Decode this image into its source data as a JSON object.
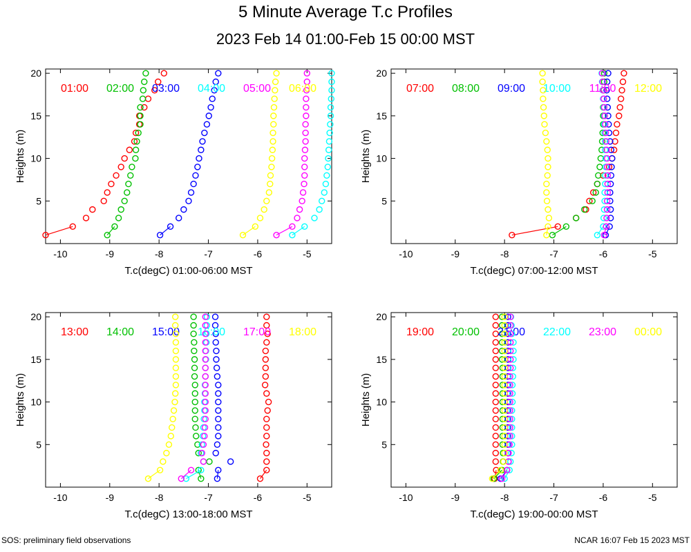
{
  "title": "5 Minute Average T.c Profiles",
  "subtitle": "2023 Feb 14 01:00-Feb 15 00:00 MST",
  "footer_left": "SOS: preliminary field observations",
  "footer_right": "NCAR 16:07 Feb 15 2023 MST",
  "colors": {
    "red": "#ff0000",
    "green": "#00c000",
    "blue": "#0000ff",
    "cyan": "#00ffff",
    "magenta": "#ff00ff",
    "yellow": "#ffff00"
  },
  "chart_data": [
    {
      "type": "scatter",
      "xlabel": "T.c(degC) 01:00-06:00 MST",
      "ylabel": "Heights (m)",
      "xlim": [
        -10.3,
        -4.5
      ],
      "ylim": [
        0,
        20.5
      ],
      "xticks": [
        -10,
        -9,
        -8,
        -7,
        -6,
        -5
      ],
      "yticks": [
        5,
        10,
        15,
        20
      ],
      "heights": [
        1,
        2,
        3,
        4,
        5,
        6,
        7,
        8,
        9,
        10,
        11,
        12,
        13,
        14,
        15,
        16,
        17,
        18,
        19,
        20
      ],
      "series": [
        {
          "name": "01:00",
          "color": "red",
          "x": [
            -10.3,
            -9.75,
            -9.48,
            -9.35,
            -9.12,
            -9.05,
            -8.97,
            -8.87,
            -8.77,
            -8.7,
            -8.6,
            -8.5,
            -8.47,
            -8.4,
            -8.4,
            -8.3,
            -8.22,
            -8.09,
            -8.02,
            -7.9
          ]
        },
        {
          "name": "02:00",
          "color": "green",
          "x": [
            -9.05,
            -8.9,
            -8.82,
            -8.77,
            -8.7,
            -8.65,
            -8.62,
            -8.58,
            -8.55,
            -8.48,
            -8.47,
            -8.45,
            -8.42,
            -8.38,
            -8.38,
            -8.38,
            -8.33,
            -8.32,
            -8.3,
            -8.27
          ]
        },
        {
          "name": "03:00",
          "color": "blue",
          "x": [
            -7.98,
            -7.77,
            -7.6,
            -7.5,
            -7.4,
            -7.35,
            -7.3,
            -7.26,
            -7.22,
            -7.19,
            -7.15,
            -7.12,
            -7.08,
            -7.03,
            -6.99,
            -6.95,
            -6.92,
            -6.88,
            -6.85,
            -6.8
          ]
        },
        {
          "name": "04:00",
          "color": "cyan",
          "x": [
            -5.3,
            -5.05,
            -4.85,
            -4.75,
            -4.7,
            -4.65,
            -4.62,
            -4.6,
            -4.58,
            -4.57,
            -4.56,
            -4.55,
            -4.54,
            -4.53,
            -4.52,
            -4.52,
            -4.51,
            -4.5,
            -4.5,
            -4.5
          ]
        },
        {
          "name": "05:00",
          "color": "magenta",
          "x": [
            -5.62,
            -5.3,
            -5.2,
            -5.15,
            -5.1,
            -5.08,
            -5.06,
            -5.05,
            -5.05,
            -5.05,
            -5.04,
            -5.03,
            -5.03,
            -5.03,
            -5.02,
            -5.02,
            -5.02,
            -5.01,
            -5.0,
            -5.0
          ]
        },
        {
          "name": "06:00",
          "color": "yellow",
          "x": [
            -6.3,
            -6.05,
            -5.95,
            -5.87,
            -5.82,
            -5.77,
            -5.75,
            -5.74,
            -5.72,
            -5.71,
            -5.7,
            -5.69,
            -5.69,
            -5.68,
            -5.68,
            -5.67,
            -5.66,
            -5.65,
            -5.64,
            -5.62
          ]
        }
      ]
    },
    {
      "type": "scatter",
      "xlabel": "T.c(degC) 07:00-12:00 MST",
      "ylabel": "Heights (m)",
      "xlim": [
        -10.3,
        -4.5
      ],
      "ylim": [
        0,
        20.5
      ],
      "xticks": [
        -10,
        -9,
        -8,
        -7,
        -6,
        -5
      ],
      "yticks": [
        5,
        10,
        15,
        20
      ],
      "heights": [
        1,
        2,
        3,
        4,
        5,
        6,
        7,
        8,
        9,
        10,
        11,
        12,
        13,
        14,
        15,
        16,
        17,
        18,
        19,
        20
      ],
      "series": [
        {
          "name": "07:00",
          "color": "red",
          "x": [
            -7.85,
            -6.92,
            -6.55,
            -6.35,
            -6.28,
            -6.2,
            -6.12,
            -6.0,
            -5.88,
            -5.82,
            -5.78,
            -5.76,
            -5.74,
            -5.72,
            -5.68,
            -5.66,
            -5.64,
            -5.62,
            -5.6,
            -5.58
          ]
        },
        {
          "name": "08:00",
          "color": "green",
          "x": [
            -7.03,
            -6.75,
            -6.55,
            -6.38,
            -6.22,
            -6.15,
            -6.12,
            -6.1,
            -6.07,
            -6.05,
            -6.03,
            -6.02,
            -6.01,
            -6.0,
            -6.0,
            -6.0,
            -5.99,
            -5.99,
            -5.98,
            -5.98
          ]
        },
        {
          "name": "09:00",
          "color": "blue",
          "x": [
            -5.95,
            -5.87,
            -5.85,
            -5.85,
            -5.86,
            -5.86,
            -5.85,
            -5.84,
            -5.83,
            -5.82,
            -5.84,
            -5.86,
            -5.88,
            -5.89,
            -5.9,
            -5.91,
            -5.92,
            -5.93,
            -5.92,
            -5.9
          ]
        },
        {
          "name": "10:00",
          "color": "cyan",
          "x": [
            -6.12,
            -6.0,
            -5.99,
            -5.98,
            -5.97,
            -5.97,
            -5.96,
            -5.96,
            -5.95,
            -5.95,
            -5.96,
            -5.96,
            -5.97,
            -5.98,
            -5.98,
            -5.99,
            -6.0,
            -6.01,
            -6.02,
            -6.03
          ]
        },
        {
          "name": "11:00",
          "color": "magenta",
          "x": [
            -5.98,
            -5.94,
            -5.93,
            -5.92,
            -5.92,
            -5.91,
            -5.91,
            -5.91,
            -5.92,
            -5.92,
            -5.93,
            -5.94,
            -5.95,
            -5.96,
            -5.97,
            -5.98,
            -5.99,
            -6.0,
            -6.01,
            -6.02
          ]
        },
        {
          "name": "12:00",
          "color": "yellow",
          "x": [
            -7.15,
            -7.12,
            -7.1,
            -7.12,
            -7.14,
            -7.15,
            -7.15,
            -7.13,
            -7.12,
            -7.12,
            -7.13,
            -7.15,
            -7.17,
            -7.19,
            -7.2,
            -7.21,
            -7.22,
            -7.22,
            -7.23,
            -7.23
          ]
        }
      ]
    },
    {
      "type": "scatter",
      "xlabel": "T.c(degC) 13:00-18:00 MST",
      "ylabel": "Heights (m)",
      "xlim": [
        -10.3,
        -4.5
      ],
      "ylim": [
        0,
        20.5
      ],
      "xticks": [
        -10,
        -9,
        -8,
        -7,
        -6,
        -5
      ],
      "yticks": [
        5,
        10,
        15,
        20
      ],
      "heights": [
        1,
        2,
        3,
        4,
        5,
        6,
        7,
        8,
        9,
        10,
        11,
        12,
        13,
        14,
        15,
        16,
        17,
        18,
        19,
        20
      ],
      "series": [
        {
          "name": "13:00",
          "color": "red",
          "x": [
            -5.95,
            -5.82,
            -5.82,
            -5.82,
            -5.83,
            -5.82,
            -5.82,
            -5.82,
            -5.8,
            -5.78,
            -5.82,
            -5.85,
            -5.84,
            -5.84,
            -5.84,
            -5.84,
            -5.82,
            -5.8,
            -5.82,
            -5.82
          ]
        },
        {
          "name": "14:00",
          "color": "green",
          "x": [
            -7.15,
            -7.2,
            -6.98,
            -7.2,
            -7.22,
            -7.25,
            -7.26,
            -7.27,
            -7.27,
            -7.27,
            -7.27,
            -7.27,
            -7.28,
            -7.28,
            -7.28,
            -7.29,
            -7.29,
            -7.3,
            -7.3,
            -7.3
          ]
        },
        {
          "name": "15:00",
          "color": "blue",
          "x": [
            -6.82,
            -6.8,
            -6.55,
            -6.85,
            -6.82,
            -6.8,
            -6.8,
            -6.8,
            -6.8,
            -6.8,
            -6.8,
            -6.8,
            -6.82,
            -6.83,
            -6.84,
            -6.84,
            -6.85,
            -6.85,
            -6.86,
            -6.86
          ]
        },
        {
          "name": "16:00",
          "color": "cyan",
          "x": [
            -7.45,
            -7.15,
            -7.1,
            -7.15,
            -7.13,
            -7.11,
            -7.1,
            -7.09,
            -7.08,
            -7.08,
            -7.07,
            -7.07,
            -7.06,
            -7.06,
            -7.05,
            -7.05,
            -7.04,
            -7.04,
            -7.03,
            -7.03
          ]
        },
        {
          "name": "17:00",
          "color": "magenta",
          "x": [
            -7.55,
            -7.35,
            -7.1,
            -7.13,
            -7.1,
            -7.08,
            -7.07,
            -7.06,
            -7.06,
            -7.06,
            -7.06,
            -7.06,
            -7.06,
            -7.06,
            -7.06,
            -7.06,
            -7.06,
            -7.06,
            -7.06,
            -7.06
          ]
        },
        {
          "name": "18:00",
          "color": "yellow",
          "x": [
            -8.22,
            -7.98,
            -7.92,
            -7.85,
            -7.8,
            -7.76,
            -7.74,
            -7.72,
            -7.7,
            -7.68,
            -7.67,
            -7.66,
            -7.66,
            -7.66,
            -7.66,
            -7.66,
            -7.66,
            -7.66,
            -7.67,
            -7.67
          ]
        }
      ]
    },
    {
      "type": "scatter",
      "xlabel": "T.c(degC) 19:00-00:00 MST",
      "ylabel": "Heights (m)",
      "xlim": [
        -10.3,
        -4.5
      ],
      "ylim": [
        0,
        20.5
      ],
      "xticks": [
        -10,
        -9,
        -8,
        -7,
        -6,
        -5
      ],
      "yticks": [
        5,
        10,
        15,
        20
      ],
      "heights": [
        1,
        2,
        3,
        4,
        5,
        6,
        7,
        8,
        9,
        10,
        11,
        12,
        13,
        14,
        15,
        16,
        17,
        18,
        19,
        20
      ],
      "series": [
        {
          "name": "19:00",
          "color": "red",
          "x": [
            -8.2,
            -8.17,
            -8.18,
            -8.18,
            -8.18,
            -8.18,
            -8.18,
            -8.18,
            -8.18,
            -8.18,
            -8.18,
            -8.18,
            -8.18,
            -8.18,
            -8.18,
            -8.18,
            -8.18,
            -8.18,
            -8.18,
            -8.18
          ]
        },
        {
          "name": "20:00",
          "color": "green",
          "x": [
            -8.22,
            -8.05,
            -8.03,
            -8.03,
            -8.04,
            -8.04,
            -8.04,
            -8.04,
            -8.04,
            -8.04,
            -8.04,
            -8.04,
            -8.04,
            -8.04,
            -8.05,
            -8.05,
            -8.05,
            -8.05,
            -8.05,
            -8.05
          ]
        },
        {
          "name": "21:00",
          "color": "blue",
          "x": [
            -8.08,
            -7.95,
            -7.92,
            -7.93,
            -7.93,
            -7.93,
            -7.93,
            -7.93,
            -7.93,
            -7.93,
            -7.93,
            -7.93,
            -7.93,
            -7.93,
            -7.93,
            -7.93,
            -7.93,
            -7.93,
            -7.93,
            -7.93
          ]
        },
        {
          "name": "22:00",
          "color": "cyan",
          "x": [
            -8.0,
            -7.9,
            -7.88,
            -7.86,
            -7.85,
            -7.85,
            -7.85,
            -7.85,
            -7.85,
            -7.84,
            -7.84,
            -7.84,
            -7.83,
            -7.83,
            -7.82,
            -7.82,
            -7.82,
            -7.85,
            -7.86,
            -7.87
          ]
        },
        {
          "name": "23:00",
          "color": "magenta",
          "x": [
            -8.05,
            -7.95,
            -7.92,
            -7.92,
            -7.9,
            -7.89,
            -7.89,
            -7.89,
            -7.89,
            -7.89,
            -7.89,
            -7.89,
            -7.89,
            -7.88,
            -7.88,
            -7.88,
            -7.88,
            -7.88,
            -7.88,
            -7.88
          ]
        },
        {
          "name": "00:00",
          "color": "yellow",
          "x": [
            -8.25,
            -8.08,
            -8.02,
            -8.0,
            -8.0,
            -8.0,
            -8.0,
            -8.0,
            -8.0,
            -8.0,
            -8.0,
            -8.0,
            -8.0,
            -8.0,
            -8.0,
            -8.0,
            -8.0,
            -8.0,
            -8.0,
            -8.0
          ]
        }
      ]
    }
  ]
}
